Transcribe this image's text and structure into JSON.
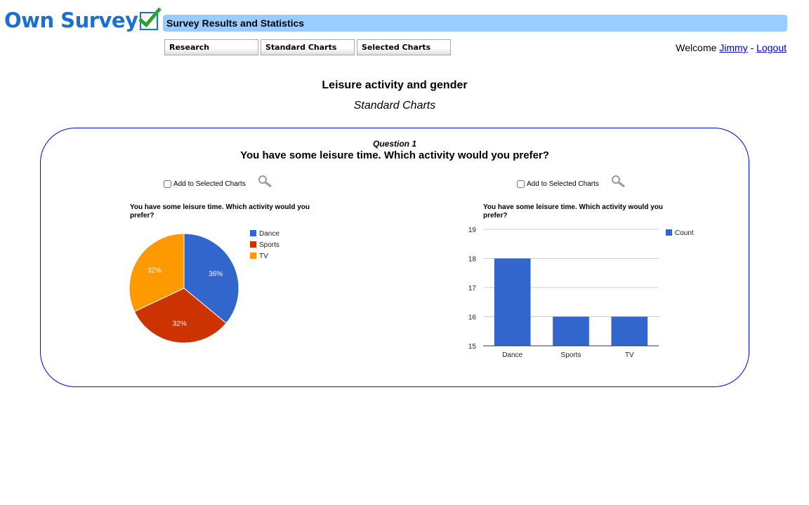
{
  "logo": {
    "text": "Own Survey"
  },
  "header": {
    "title": "Survey Results and Statistics"
  },
  "nav": {
    "tabs": [
      {
        "label": "Research"
      },
      {
        "label": "Standard Charts"
      },
      {
        "label": "Selected Charts"
      }
    ]
  },
  "user": {
    "welcome": "Welcome",
    "name": "Jimmy",
    "separator": "-",
    "logout": "Logout"
  },
  "page": {
    "title": "Leisure activity and gender",
    "subtitle": "Standard Charts"
  },
  "question": {
    "number": "Question 1",
    "text": "You have some leisure time. Which activity would you prefer?"
  },
  "controls": {
    "add_label": "Add to Selected Charts",
    "zoom_icon": "magnifier-icon"
  },
  "colors": {
    "Dance": "#3366cc",
    "Sports": "#cc3300",
    "TV": "#ff9900"
  },
  "chart_data": [
    {
      "type": "pie",
      "title": "You have some leisure time. Which activity would you prefer?",
      "categories": [
        "Dance",
        "Sports",
        "TV"
      ],
      "values": [
        18,
        16,
        16
      ],
      "labels": [
        "36%",
        "32%",
        "32%"
      ],
      "legend": "right"
    },
    {
      "type": "bar",
      "title": "You have some leisure time. Which activity would you prefer?",
      "categories": [
        "Dance",
        "Sports",
        "TV"
      ],
      "series": [
        {
          "name": "Count",
          "values": [
            18,
            16,
            16
          ]
        }
      ],
      "ylim": [
        15,
        19
      ],
      "yticks": [
        "15",
        "16",
        "17",
        "18",
        "19"
      ],
      "grid": true,
      "legend": "right"
    }
  ]
}
